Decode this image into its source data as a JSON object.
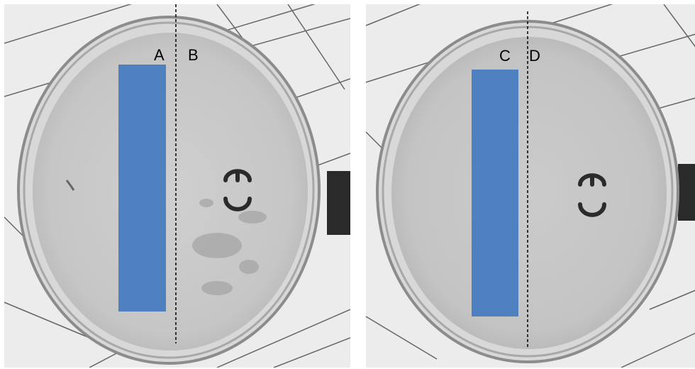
{
  "panels": [
    {
      "id": "left",
      "labels": {
        "left_of_line": "A",
        "right_of_line": "B"
      }
    },
    {
      "id": "right",
      "labels": {
        "left_of_line": "C",
        "right_of_line": "D"
      }
    }
  ],
  "colors": {
    "mask_rectangle": "#4f80c0",
    "grid_paper": "#ededed",
    "grid_lines": "#3a3a3a",
    "dish_rim": "#9a9a9a",
    "agar": "#c9c9c9",
    "ce_mark": "#2b2b2b",
    "divider_line": "#000000"
  },
  "ce_mark_glyph": "CE"
}
